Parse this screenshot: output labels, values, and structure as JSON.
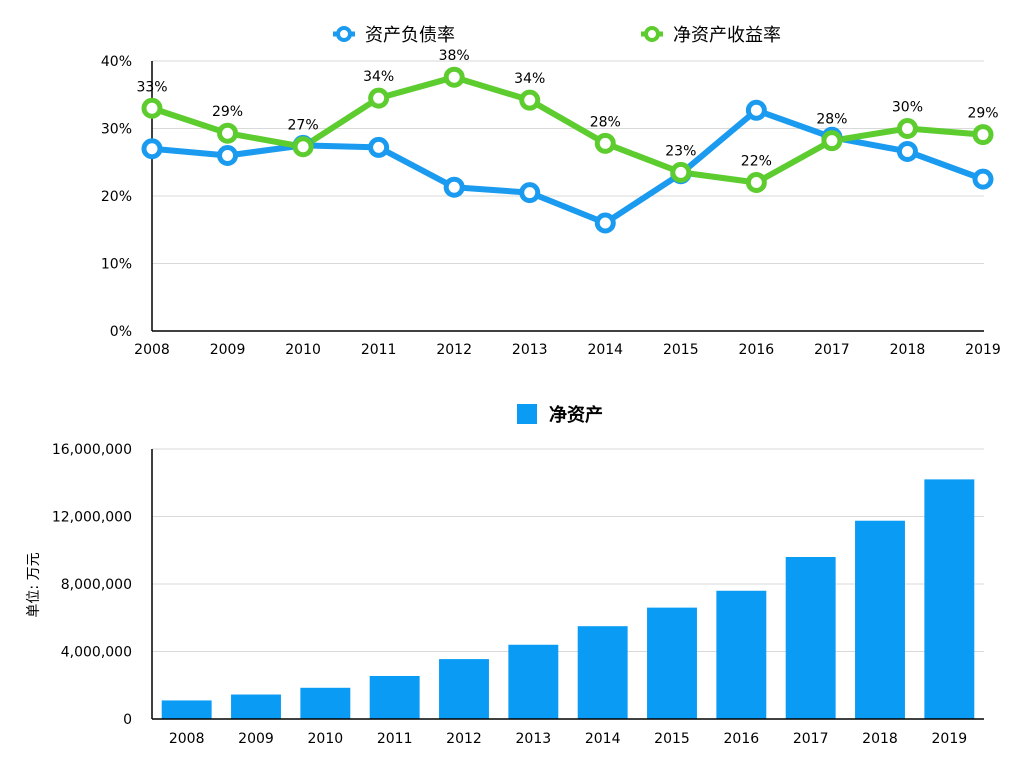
{
  "colors": {
    "series1": "#1a9bf0",
    "series2": "#5dcc2e",
    "bar": "#0a9cf5",
    "grid": "#d9d9d9",
    "axis": "#000000"
  },
  "chart_data": [
    {
      "type": "line",
      "x": [
        "2008",
        "2009",
        "2010",
        "2011",
        "2012",
        "2013",
        "2014",
        "2015",
        "2016",
        "2017",
        "2018",
        "2019"
      ],
      "ylim": [
        0,
        40
      ],
      "yticks": [
        "0%",
        "10%",
        "20%",
        "30%",
        "40%"
      ],
      "grid": true,
      "legend_position": "top",
      "series": [
        {
          "name": "资产负债率",
          "color": "#1a9bf0",
          "values": [
            27,
            26,
            27.5,
            27.2,
            21.3,
            20.5,
            16,
            23.3,
            32.7,
            28.7,
            26.6,
            22.5
          ],
          "labels": []
        },
        {
          "name": "净资产收益率",
          "color": "#5dcc2e",
          "values": [
            33,
            29.3,
            27.3,
            34.5,
            37.6,
            34.2,
            27.8,
            23.5,
            22,
            28.2,
            30,
            29.1
          ],
          "labels": [
            "33%",
            "29%",
            "27%",
            "34%",
            "38%",
            "34%",
            "28%",
            "23%",
            "22%",
            "28%",
            "30%",
            "29%"
          ]
        }
      ]
    },
    {
      "type": "bar",
      "categories": [
        "2008",
        "2009",
        "2010",
        "2011",
        "2012",
        "2013",
        "2014",
        "2015",
        "2016",
        "2017",
        "2018",
        "2019"
      ],
      "ylim": [
        0,
        16000000
      ],
      "yticks": [
        "0",
        "4,000,000",
        "8,000,000",
        "12,000,000",
        "16,000,000"
      ],
      "ylabel": "单位: 万元",
      "grid": true,
      "legend_position": "top",
      "series": [
        {
          "name": "净资产",
          "color": "#0a9cf5",
          "values": [
            1100000,
            1450000,
            1850000,
            2550000,
            3550000,
            4400000,
            5500000,
            6600000,
            7600000,
            9600000,
            11750000,
            14200000
          ]
        }
      ]
    }
  ]
}
